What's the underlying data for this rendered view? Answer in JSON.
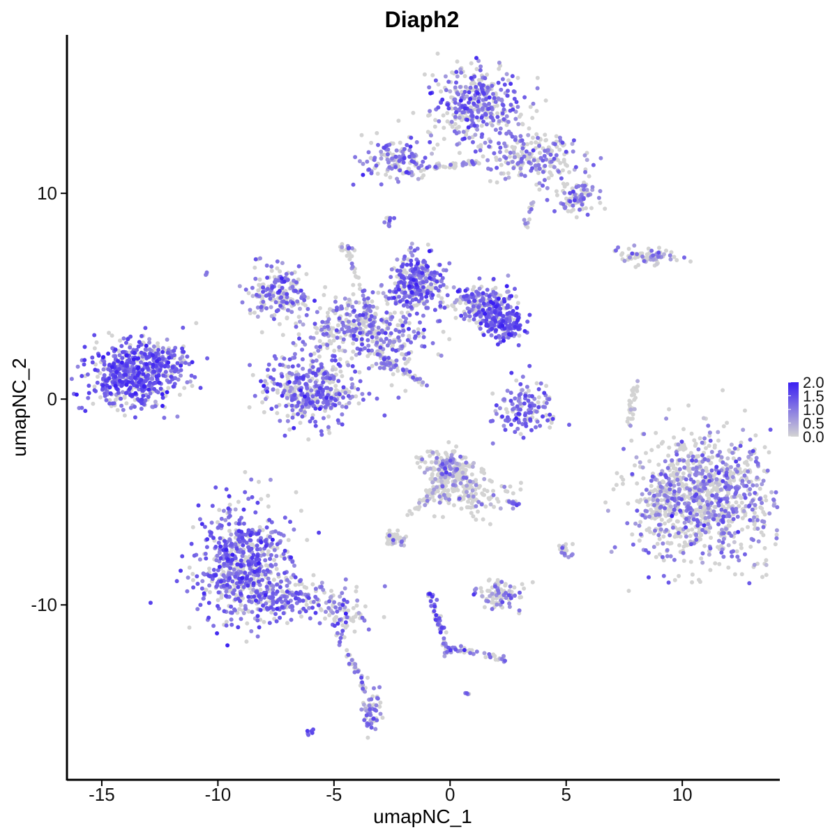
{
  "chart_data": {
    "type": "scatter",
    "title": "Diaph2",
    "xlabel": "umapNC_1",
    "ylabel": "umapNC_2",
    "xlim": [
      -16.5,
      14.2
    ],
    "ylim": [
      -18.5,
      17.7
    ],
    "xticks": [
      -15,
      -10,
      -5,
      0,
      5,
      10
    ],
    "xtick_labels": [
      "-15",
      "-10",
      "-5",
      "0",
      "5",
      "10"
    ],
    "yticks": [
      10,
      0,
      -10
    ],
    "ytick_labels": [
      "10",
      "0",
      "-10"
    ],
    "grid": false,
    "color_scale": {
      "low": "#d3d3d3",
      "high": "#3a1ff2",
      "min": 0.0,
      "max": 2.0,
      "labels": [
        "2.0",
        "1.5",
        "1.0",
        "0.5",
        "0.0"
      ],
      "legend_position": "right"
    },
    "clusters": [
      {
        "cx": -13.6,
        "cy": 1.2,
        "sx": 1.0,
        "sy": 0.85,
        "n": 520,
        "expr": 1.15
      },
      {
        "cx": -12.2,
        "cy": 2.0,
        "sx": 0.5,
        "sy": 0.4,
        "n": 80,
        "expr": 1.0
      },
      {
        "cx": -8.8,
        "cy": -8.0,
        "sx": 1.0,
        "sy": 1.4,
        "n": 620,
        "expr": 1.05
      },
      {
        "cx": -6.8,
        "cy": -9.6,
        "sx": 1.2,
        "sy": 0.5,
        "n": 160,
        "expr": 0.9
      },
      {
        "cx": -4.6,
        "cy": -10.4,
        "sx": 0.6,
        "sy": 0.4,
        "n": 70,
        "expr": 0.8
      },
      {
        "cx": -3.4,
        "cy": -15.1,
        "sx": 0.2,
        "sy": 0.6,
        "n": 60,
        "expr": 0.75
      },
      {
        "cx": -6.0,
        "cy": 0.5,
        "sx": 1.0,
        "sy": 0.8,
        "n": 420,
        "expr": 0.85
      },
      {
        "cx": -7.4,
        "cy": 5.2,
        "sx": 0.7,
        "sy": 0.6,
        "n": 170,
        "expr": 0.7
      },
      {
        "cx": -4.4,
        "cy": 3.6,
        "sx": 1.2,
        "sy": 0.8,
        "n": 240,
        "expr": 0.6
      },
      {
        "cx": -1.4,
        "cy": 5.6,
        "sx": 0.6,
        "sy": 0.7,
        "n": 280,
        "expr": 1.0
      },
      {
        "cx": 1.4,
        "cy": 4.6,
        "sx": 0.7,
        "sy": 0.5,
        "n": 200,
        "expr": 0.9
      },
      {
        "cx": 2.2,
        "cy": 3.8,
        "sx": 0.5,
        "sy": 0.45,
        "n": 170,
        "expr": 1.2
      },
      {
        "cx": -2.7,
        "cy": 2.9,
        "sx": 0.9,
        "sy": 0.7,
        "n": 150,
        "expr": 0.8
      },
      {
        "cx": 1.2,
        "cy": 14.4,
        "sx": 1.0,
        "sy": 1.0,
        "n": 360,
        "expr": 0.8
      },
      {
        "cx": 3.5,
        "cy": 11.8,
        "sx": 1.1,
        "sy": 0.6,
        "n": 220,
        "expr": 0.55
      },
      {
        "cx": 5.4,
        "cy": 9.8,
        "sx": 0.5,
        "sy": 0.4,
        "n": 90,
        "expr": 0.6
      },
      {
        "cx": -2.3,
        "cy": 11.6,
        "sx": 0.8,
        "sy": 0.5,
        "n": 140,
        "expr": 0.75
      },
      {
        "cx": 11.0,
        "cy": -4.8,
        "sx": 1.4,
        "sy": 1.45,
        "n": 950,
        "expr": 0.55
      },
      {
        "cx": 9.1,
        "cy": -5.2,
        "sx": 0.4,
        "sy": 0.8,
        "n": 90,
        "expr": 0.25
      },
      {
        "cx": 0.0,
        "cy": -3.6,
        "sx": 0.55,
        "sy": 0.55,
        "n": 230,
        "expr": 0.25
      },
      {
        "cx": 0.9,
        "cy": -4.8,
        "sx": 0.8,
        "sy": 0.5,
        "n": 110,
        "expr": 0.15
      },
      {
        "cx": -2.4,
        "cy": -6.8,
        "sx": 0.25,
        "sy": 0.2,
        "n": 40,
        "expr": 0.25
      },
      {
        "cx": 2.1,
        "cy": -9.5,
        "sx": 0.5,
        "sy": 0.35,
        "n": 90,
        "expr": 0.55
      },
      {
        "cx": 3.2,
        "cy": -0.5,
        "sx": 0.7,
        "sy": 0.6,
        "n": 140,
        "expr": 0.9
      },
      {
        "cx": 8.6,
        "cy": 6.9,
        "sx": 0.6,
        "sy": 0.22,
        "n": 70,
        "expr": 0.4
      },
      {
        "cx": 2.8,
        "cy": -5.0,
        "sx": 0.2,
        "sy": 0.1,
        "n": 14,
        "expr": 0.8
      },
      {
        "cx": 5.0,
        "cy": -7.3,
        "sx": 0.2,
        "sy": 0.2,
        "n": 18,
        "expr": 0.7
      },
      {
        "cx": -2.7,
        "cy": 8.6,
        "sx": 0.15,
        "sy": 0.15,
        "n": 10,
        "expr": 0.8
      },
      {
        "cx": -4.5,
        "cy": 7.2,
        "sx": 0.15,
        "sy": 0.2,
        "n": 14,
        "expr": 0.7
      },
      {
        "cx": -6.0,
        "cy": -16.2,
        "sx": 0.08,
        "sy": 0.06,
        "n": 6,
        "expr": 1.6
      },
      {
        "cx": 0.7,
        "cy": -14.3,
        "sx": 0.06,
        "sy": 0.05,
        "n": 4,
        "expr": 1.0
      },
      {
        "cx": -10.5,
        "cy": 6.1,
        "sx": 0.05,
        "sy": 0.05,
        "n": 3,
        "expr": 0.7
      }
    ],
    "streaks": [
      {
        "x1": -4.4,
        "y1": 7.3,
        "x2": -2.7,
        "y2": 1.5,
        "n": 50,
        "expr": 0.7
      },
      {
        "x1": -3.2,
        "y1": 2.2,
        "x2": -1.1,
        "y2": 0.7,
        "n": 40,
        "expr": 0.7
      },
      {
        "x1": -0.8,
        "y1": 11.3,
        "x2": 1.2,
        "y2": 11.5,
        "n": 40,
        "expr": 0.4
      },
      {
        "x1": -5.0,
        "y1": -11.0,
        "x2": -3.6,
        "y2": -14.2,
        "n": 35,
        "expr": 0.5
      },
      {
        "x1": -0.9,
        "y1": -9.3,
        "x2": -0.3,
        "y2": -11.4,
        "n": 30,
        "expr": 0.9
      },
      {
        "x1": -0.2,
        "y1": -12.0,
        "x2": 2.4,
        "y2": -12.7,
        "n": 40,
        "expr": 0.6
      },
      {
        "x1": -0.6,
        "y1": -10.5,
        "x2": -0.1,
        "y2": -12.5,
        "n": 20,
        "expr": 0.8
      },
      {
        "x1": 8.0,
        "y1": 1.0,
        "x2": 7.7,
        "y2": -1.3,
        "n": 30,
        "expr": 0.1
      },
      {
        "x1": -1.8,
        "y1": -5.6,
        "x2": -0.4,
        "y2": -4.2,
        "n": 30,
        "expr": 0.15
      },
      {
        "x1": 3.3,
        "y1": 8.4,
        "x2": 3.6,
        "y2": 9.6,
        "n": 14,
        "expr": 0.3
      }
    ]
  }
}
